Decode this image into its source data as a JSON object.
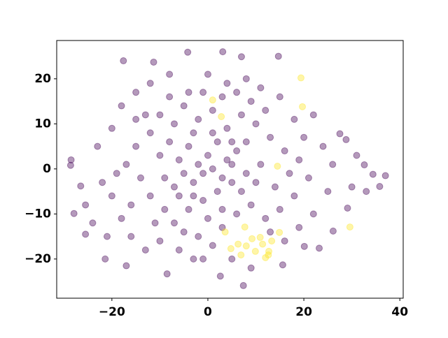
{
  "chart_data": {
    "type": "scatter",
    "series": [
      {
        "color": "#440154",
        "x": [
          -28.5,
          -28.6,
          -26.5,
          -27.9,
          -25.5,
          -25.5,
          -21.4,
          -17.6,
          -11.3,
          -4.2,
          3.1,
          7,
          14.7,
          7.4,
          2.6,
          -8.5,
          37,
          35.8,
          34.4,
          32.6,
          29.1,
          26.1,
          23.2,
          20.1,
          15.6,
          -3,
          -17,
          27.5,
          28.8,
          -23,
          -20,
          -18,
          -15,
          -12,
          -8,
          -4,
          0,
          4,
          8,
          11,
          15,
          18,
          22,
          24,
          26,
          25,
          22,
          19,
          16,
          -22,
          -20,
          -18,
          -16,
          -13,
          -10,
          -6,
          -2,
          1,
          5,
          9,
          -15,
          -12,
          -10,
          -7,
          -5,
          -2,
          1,
          4,
          7,
          10,
          13,
          16,
          19,
          21,
          18,
          15,
          12,
          9,
          6,
          3,
          -14,
          -12,
          -9,
          -7,
          -4,
          -1,
          2,
          5,
          8,
          11,
          -10,
          -8,
          -6,
          -4,
          -2,
          0,
          2,
          4,
          6,
          8,
          -9,
          -7,
          -5,
          -3,
          -1,
          1,
          3,
          5,
          -6,
          -3,
          -17,
          -19,
          -24,
          -21,
          30,
          31,
          33,
          20,
          17,
          14,
          -16,
          -13,
          -11,
          -8,
          -1,
          3,
          6,
          9,
          12,
          0,
          -3,
          1,
          5,
          -5,
          -1,
          3,
          7,
          10,
          13,
          -15
        ],
        "y": [
          2,
          0.8,
          -3.8,
          -9.9,
          -14.5,
          -8,
          -20,
          24,
          23.7,
          25.9,
          26,
          24.9,
          25,
          -25.9,
          -23.8,
          -23.3,
          -1.5,
          -3.9,
          -1.2,
          0.9,
          -8.7,
          -13.8,
          -17.6,
          -17.2,
          -21.3,
          -20,
          -21.5,
          7.8,
          6.5,
          5,
          9,
          14,
          17,
          19,
          21,
          17,
          21,
          19,
          20,
          18,
          16,
          11,
          12,
          5,
          1,
          -5,
          -10,
          -13,
          -16,
          -3,
          -6,
          -11,
          -15,
          -18,
          -16,
          -18,
          -15,
          -17,
          -20,
          -22,
          5,
          8,
          12,
          10,
          14,
          11,
          13,
          9,
          12,
          10,
          7,
          4,
          2,
          -2,
          -6,
          -9,
          -11,
          -8,
          -10,
          -13,
          -2,
          -6,
          -9,
          -12,
          -9,
          -7,
          -5,
          -3,
          -1,
          1,
          3,
          6,
          2,
          5,
          1,
          3,
          6,
          2,
          4,
          6,
          -2,
          -4,
          -1,
          -3,
          -1,
          0,
          -2,
          1,
          -6,
          -6,
          1,
          -1,
          -12,
          -15,
          -4,
          3,
          -5,
          7,
          -1,
          -4,
          -8,
          12,
          -12,
          16,
          17,
          16,
          17,
          15,
          13,
          -11,
          8,
          8,
          6,
          -14,
          -20,
          -9,
          -5,
          -3,
          -14,
          11
        ]
      },
      {
        "color": "#fde725",
        "x": [
          19.4,
          1,
          2.8,
          19.7,
          14.5,
          14.9,
          3.6,
          4.8,
          6.3,
          6.9,
          8,
          9.2,
          10.9,
          9.9,
          11.4,
          12.6,
          13.3,
          12,
          29.6,
          7.7,
          12.7
        ],
        "y": [
          20.2,
          15.3,
          11.6,
          13.8,
          0.6,
          -14.1,
          -14,
          -17.7,
          -16.7,
          -19.1,
          -17.1,
          -15.5,
          -15.2,
          -18.3,
          -16.7,
          -19.1,
          -16,
          -19.7,
          -12.9,
          -12.9,
          -18.3
        ]
      }
    ],
    "xlim": [
      -31.5,
      40.7
    ],
    "ylim": [
      -28.7,
      28.5
    ],
    "xticks": [
      {
        "value": -20,
        "label": "−20"
      },
      0,
      20,
      40
    ],
    "yticks": [
      {
        "value": -20,
        "label": "−20"
      },
      {
        "value": -10,
        "label": "−10"
      },
      0,
      10,
      20
    ],
    "alpha": 0.4
  }
}
